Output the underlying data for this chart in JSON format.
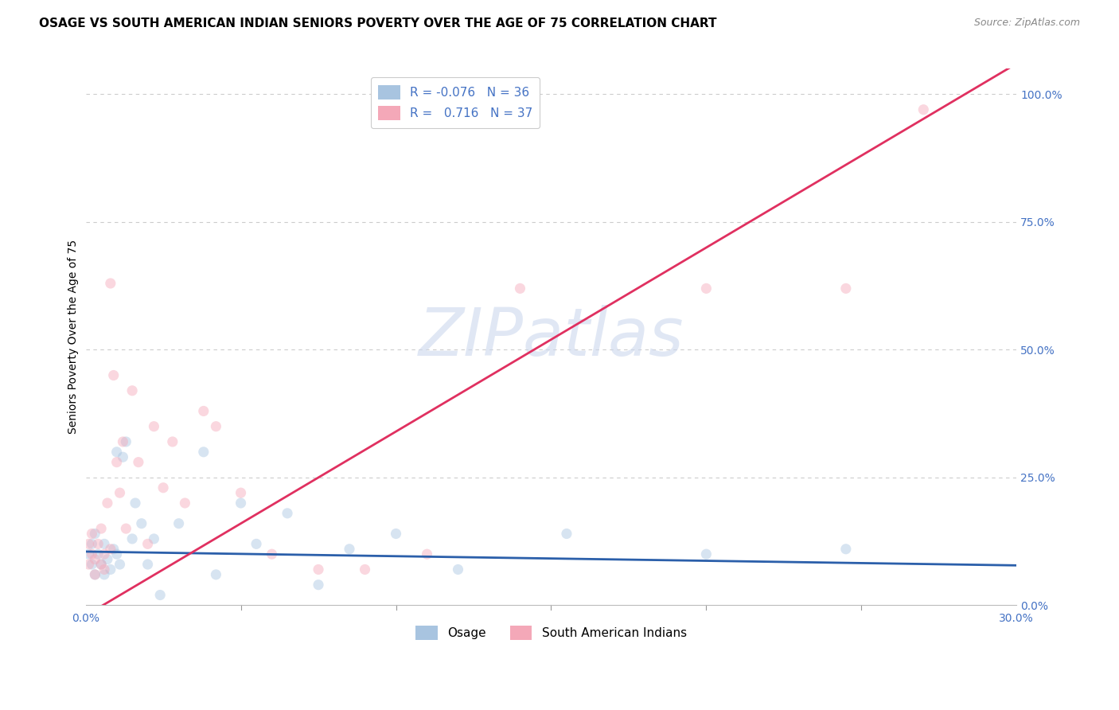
{
  "title": "OSAGE VS SOUTH AMERICAN INDIAN SENIORS POVERTY OVER THE AGE OF 75 CORRELATION CHART",
  "source": "Source: ZipAtlas.com",
  "ylabel": "Seniors Poverty Over the Age of 75",
  "watermark": "ZIPatlas",
  "xlim": [
    0.0,
    0.3
  ],
  "ylim": [
    0.0,
    1.05
  ],
  "xticks": [
    0.0,
    0.05,
    0.1,
    0.15,
    0.2,
    0.25,
    0.3
  ],
  "yticks_right": [
    0.0,
    0.25,
    0.5,
    0.75,
    1.0
  ],
  "yticklabels_right": [
    "0.0%",
    "25.0%",
    "50.0%",
    "75.0%",
    "100.0%"
  ],
  "osage_color": "#a8c4e0",
  "osage_line_color": "#2b5faa",
  "sam_color": "#f4a8b8",
  "sam_line_color": "#e03060",
  "legend_R_osage": "-0.076",
  "legend_N_osage": "36",
  "legend_R_sam": "0.716",
  "legend_N_sam": "37",
  "osage_x": [
    0.001,
    0.002,
    0.002,
    0.003,
    0.003,
    0.004,
    0.005,
    0.006,
    0.006,
    0.007,
    0.008,
    0.009,
    0.01,
    0.01,
    0.011,
    0.012,
    0.013,
    0.015,
    0.016,
    0.018,
    0.02,
    0.022,
    0.024,
    0.03,
    0.038,
    0.042,
    0.05,
    0.055,
    0.065,
    0.075,
    0.085,
    0.1,
    0.12,
    0.155,
    0.2,
    0.245
  ],
  "osage_y": [
    0.1,
    0.08,
    0.12,
    0.06,
    0.14,
    0.1,
    0.08,
    0.12,
    0.06,
    0.09,
    0.07,
    0.11,
    0.1,
    0.3,
    0.08,
    0.29,
    0.32,
    0.13,
    0.2,
    0.16,
    0.08,
    0.13,
    0.02,
    0.16,
    0.3,
    0.06,
    0.2,
    0.12,
    0.18,
    0.04,
    0.11,
    0.14,
    0.07,
    0.14,
    0.1,
    0.11
  ],
  "sam_x": [
    0.001,
    0.001,
    0.002,
    0.002,
    0.003,
    0.003,
    0.004,
    0.005,
    0.005,
    0.006,
    0.006,
    0.007,
    0.008,
    0.008,
    0.009,
    0.01,
    0.011,
    0.012,
    0.013,
    0.015,
    0.017,
    0.02,
    0.022,
    0.025,
    0.028,
    0.032,
    0.038,
    0.042,
    0.05,
    0.06,
    0.075,
    0.09,
    0.11,
    0.14,
    0.2,
    0.245,
    0.27
  ],
  "sam_y": [
    0.12,
    0.08,
    0.1,
    0.14,
    0.06,
    0.09,
    0.12,
    0.08,
    0.15,
    0.1,
    0.07,
    0.2,
    0.11,
    0.63,
    0.45,
    0.28,
    0.22,
    0.32,
    0.15,
    0.42,
    0.28,
    0.12,
    0.35,
    0.23,
    0.32,
    0.2,
    0.38,
    0.35,
    0.22,
    0.1,
    0.07,
    0.07,
    0.1,
    0.62,
    0.62,
    0.62,
    0.97
  ],
  "background_color": "#ffffff",
  "grid_color": "#cccccc",
  "title_fontsize": 11,
  "axis_label_fontsize": 10,
  "tick_fontsize": 10,
  "marker_size": 90,
  "marker_alpha": 0.45,
  "osage_reg_intercept": 0.105,
  "osage_reg_slope": -0.09,
  "sam_reg_intercept": -0.02,
  "sam_reg_slope": 3.6
}
